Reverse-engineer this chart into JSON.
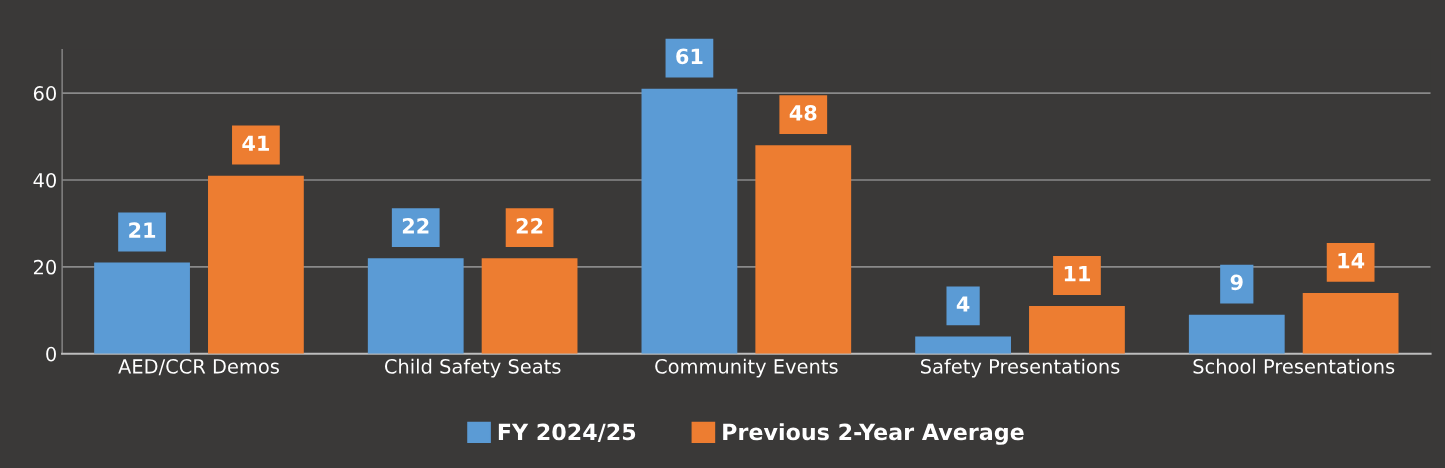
{
  "chart_data": {
    "type": "bar",
    "categories": [
      "AED/CCR Demos",
      "Child Safety Seats",
      "Community Events",
      "Safety Presentations",
      "School Presentations"
    ],
    "series": [
      {
        "name": "FY 2024/25",
        "color": "#5b9bd5",
        "values": [
          21,
          22,
          61,
          4,
          9
        ]
      },
      {
        "name": "Previous 2-Year Average",
        "color": "#ed7d31",
        "values": [
          41,
          22,
          48,
          11,
          14
        ]
      }
    ],
    "ylim": [
      0,
      70
    ],
    "yticks": [
      0,
      20,
      40,
      60
    ],
    "grid": "y",
    "legend": "bottom",
    "data_labels": true
  }
}
